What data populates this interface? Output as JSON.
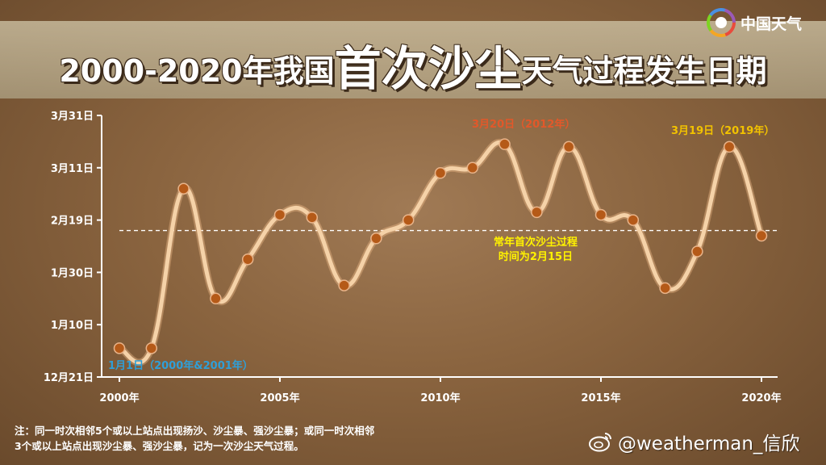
{
  "header": {
    "title_a": "2000-2020年我国",
    "title_b": "首次沙尘",
    "title_c": "天气过程发生日期"
  },
  "logo": {
    "icon": "china-weather-swirl-icon",
    "text": "中国天气"
  },
  "chart_data": {
    "type": "line",
    "title": "2000-2020年我国首次沙尘天气过程发生日期",
    "xlabel": "",
    "ylabel": "",
    "x_ticks": [
      "2000年",
      "2005年",
      "2010年",
      "2015年",
      "2020年"
    ],
    "y_ticks": [
      "12月21日",
      "1月10日",
      "1月30日",
      "2月19日",
      "3月11日",
      "3月31日"
    ],
    "x_range": [
      2000,
      2020
    ],
    "y_range": [
      "12-21",
      "03-31"
    ],
    "series": [
      {
        "x": [
          2000,
          2001,
          2002,
          2003,
          2004,
          2005,
          2006,
          2007,
          2008,
          2009,
          2010,
          2011,
          2012,
          2013,
          2014,
          2015,
          2016,
          2017,
          2018,
          2019,
          2020
        ],
        "y": [
          "01-01",
          "01-01",
          "03-03",
          "01-20",
          "02-04",
          "02-21",
          "02-20",
          "01-25",
          "02-12",
          "02-19",
          "03-09",
          "03-11",
          "03-20",
          "02-22",
          "03-19",
          "02-21",
          "02-19",
          "01-24",
          "02-07",
          "03-19",
          "02-13"
        ]
      }
    ],
    "reference_line": {
      "y": "02-15",
      "style": "dashed",
      "color": "#ffffff"
    },
    "annotations": {
      "min_label": "1月1日（2000年&2001年）",
      "max1_label": "3月20日（2012年）",
      "max2_label": "3月19日（2019年）",
      "normal_label_line1": "常年首次沙尘过程",
      "normal_label_line2": "时间为2月15日"
    },
    "colors": {
      "line": "#f5d2a8",
      "marker": "#b55a18",
      "min_label": "#2f9fd8",
      "max1_label": "#e2582a",
      "max2_label": "#f2c200",
      "normal_label": "#fff200"
    },
    "grid": false
  },
  "footnote": {
    "line1": "注：同一时次相邻5个或以上站点出现扬沙、沙尘暴、强沙尘暴；或同一时次相邻",
    "line2": "3个或以上站点出现沙尘暴、强沙尘暴，记为一次沙尘天气过程。"
  },
  "watermark": {
    "icon": "weibo-icon",
    "text": "@weatherman_信欣"
  }
}
